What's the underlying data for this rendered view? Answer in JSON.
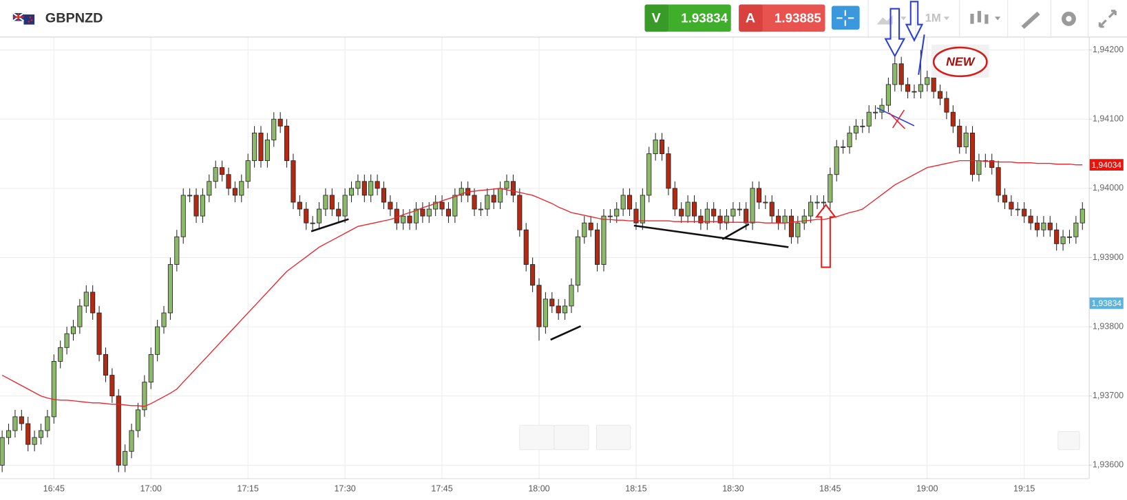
{
  "header": {
    "symbol": "GBPNZD",
    "sell_label": "V",
    "sell_price": "1.93834",
    "buy_label": "A",
    "buy_price": "1.93885",
    "timeframe": "1M"
  },
  "badge": "NEW",
  "chart_data": {
    "type": "candlestick",
    "categories": [
      null,
      null,
      null,
      null,
      null,
      null,
      null,
      null,
      "16:45",
      null,
      null,
      null,
      null,
      null,
      null,
      null,
      null,
      null,
      null,
      null,
      null,
      null,
      null,
      "17:00",
      null,
      null,
      null,
      null,
      null,
      null,
      null,
      null,
      null,
      null,
      null,
      null,
      null,
      null,
      "17:15",
      null,
      null,
      null,
      null,
      null,
      null,
      null,
      null,
      null,
      null,
      null,
      null,
      null,
      null,
      "17:30",
      null,
      null,
      null,
      null,
      null,
      null,
      null,
      null,
      null,
      null,
      null,
      null,
      null,
      null,
      "17:45",
      null,
      null,
      null,
      null,
      null,
      null,
      null,
      null,
      null,
      null,
      null,
      null,
      null,
      null,
      "18:00",
      null,
      null,
      null,
      null,
      null,
      null,
      null,
      null,
      null,
      null,
      null,
      null,
      null,
      null,
      "18:15",
      null,
      null,
      null,
      null,
      null,
      null,
      null,
      null,
      null,
      null,
      null,
      null,
      null,
      null,
      "18:30",
      null,
      null,
      null,
      null,
      null,
      null,
      null,
      null,
      null,
      null,
      null,
      null,
      null,
      null,
      "18:45",
      null,
      null,
      null,
      null,
      null,
      null,
      null,
      null,
      null,
      null,
      null,
      null,
      null,
      null,
      "19:00",
      null,
      null,
      null,
      null,
      null,
      null,
      null,
      null,
      null,
      null,
      null,
      null,
      null,
      null,
      "19:15",
      null,
      null,
      null,
      null,
      null,
      null,
      null,
      null,
      null
    ],
    "open": [
      1.936,
      1.9364,
      1.9365,
      1.9367,
      1.9366,
      1.9363,
      1.9364,
      1.9365,
      1.9367,
      1.9375,
      1.9377,
      1.9379,
      1.938,
      1.9383,
      1.9385,
      1.9382,
      1.9376,
      1.9373,
      1.937,
      1.936,
      1.9362,
      1.9365,
      1.9368,
      1.9372,
      1.9376,
      1.938,
      1.9382,
      1.9389,
      1.9393,
      1.9399,
      1.9399,
      1.9396,
      1.9399,
      1.9401,
      1.9403,
      1.9402,
      1.94,
      1.9399,
      1.9401,
      1.9404,
      1.9408,
      1.9404,
      1.9407,
      1.941,
      1.9409,
      1.9404,
      1.9398,
      1.9397,
      1.9395,
      1.9395,
      1.9397,
      1.9399,
      1.9397,
      1.9396,
      1.9399,
      1.94,
      1.9401,
      1.9399,
      1.9401,
      1.94,
      1.9398,
      1.9397,
      1.9395,
      1.9396,
      1.9395,
      1.9397,
      1.9396,
      1.9397,
      1.9398,
      1.9397,
      1.9396,
      1.9399,
      1.94,
      1.9399,
      1.9397,
      1.9397,
      1.9399,
      1.9398,
      1.94,
      1.9401,
      1.9399,
      1.9394,
      1.9389,
      1.9386,
      1.938,
      1.9384,
      1.9383,
      1.9382,
      1.9383,
      1.9386,
      1.9393,
      1.9395,
      1.9394,
      1.9389,
      1.9396,
      1.9396,
      1.9397,
      1.9399,
      1.9397,
      1.9395,
      1.9399,
      1.9405,
      1.9407,
      1.9405,
      1.94,
      1.9397,
      1.9396,
      1.9398,
      1.9396,
      1.9395,
      1.9397,
      1.9396,
      1.9395,
      1.9396,
      1.9397,
      1.9397,
      1.9395,
      1.94,
      1.9398,
      1.9398,
      1.9396,
      1.9395,
      1.9396,
      1.9393,
      1.9395,
      1.9396,
      1.9398,
      1.9398,
      1.9398,
      1.9402,
      1.9406,
      1.9406,
      1.9408,
      1.9409,
      1.9409,
      1.9411,
      1.9411,
      1.9412,
      1.9415,
      1.9418,
      1.9415,
      1.9414,
      1.9414,
      1.9415,
      1.9416,
      1.9414,
      1.9413,
      1.9411,
      1.9409,
      1.9406,
      1.9408,
      1.9402,
      1.9404,
      1.9404,
      1.9403,
      1.9399,
      1.9398,
      1.9397,
      1.9397,
      1.9396,
      1.9395,
      1.9394,
      1.9395,
      1.9394,
      1.9392,
      1.9393,
      1.9393,
      1.9395
    ],
    "high": [
      1.9365,
      1.9366,
      1.9368,
      1.9368,
      1.9367,
      1.9365,
      1.9366,
      1.9368,
      1.9376,
      1.9378,
      1.938,
      1.9381,
      1.9384,
      1.9386,
      1.9386,
      1.9383,
      1.9377,
      1.9374,
      1.9371,
      1.9363,
      1.9366,
      1.9369,
      1.9373,
      1.9377,
      1.9381,
      1.9383,
      1.939,
      1.9394,
      1.94,
      1.94,
      1.94,
      1.94,
      1.9402,
      1.9404,
      1.9404,
      1.9403,
      1.9401,
      1.9402,
      1.9405,
      1.9409,
      1.9409,
      1.9408,
      1.9411,
      1.9411,
      1.941,
      1.9405,
      1.9399,
      1.9398,
      1.9396,
      1.9398,
      1.94,
      1.94,
      1.9398,
      1.94,
      1.9401,
      1.9402,
      1.9402,
      1.9402,
      1.9402,
      1.9401,
      1.9399,
      1.9398,
      1.9397,
      1.9397,
      1.9398,
      1.9398,
      1.9398,
      1.9399,
      1.9399,
      1.9398,
      1.94,
      1.9401,
      1.9401,
      1.94,
      1.9398,
      1.94,
      1.94,
      1.9401,
      1.9402,
      1.9402,
      1.94,
      1.9395,
      1.939,
      1.9387,
      1.9385,
      1.9385,
      1.9384,
      1.9384,
      1.9387,
      1.9394,
      1.9396,
      1.9396,
      1.9395,
      1.9397,
      1.9397,
      1.9398,
      1.94,
      1.94,
      1.9398,
      1.94,
      1.9406,
      1.9408,
      1.9408,
      1.9406,
      1.9401,
      1.9398,
      1.9399,
      1.9399,
      1.9397,
      1.9398,
      1.9398,
      1.9397,
      1.9397,
      1.9398,
      1.9398,
      1.9398,
      1.9401,
      1.9401,
      1.9399,
      1.9399,
      1.9397,
      1.9397,
      1.9397,
      1.9396,
      1.9397,
      1.9399,
      1.9399,
      1.9399,
      1.9403,
      1.9407,
      1.9407,
      1.9409,
      1.941,
      1.941,
      1.9412,
      1.9412,
      1.9413,
      1.9416,
      1.9419,
      1.9419,
      1.9416,
      1.9415,
      1.942,
      1.9417,
      1.9417,
      1.9415,
      1.9414,
      1.9412,
      1.941,
      1.9409,
      1.9409,
      1.9405,
      1.9405,
      1.9405,
      1.9404,
      1.94,
      1.9399,
      1.9398,
      1.9398,
      1.9397,
      1.9396,
      1.9396,
      1.9396,
      1.9395,
      1.9394,
      1.9394,
      1.9396,
      1.9398
    ],
    "low": [
      1.9359,
      1.9363,
      1.9364,
      1.9365,
      1.9362,
      1.9362,
      1.9363,
      1.9364,
      1.9366,
      1.9374,
      1.9376,
      1.9378,
      1.9379,
      1.9382,
      1.9381,
      1.9375,
      1.9372,
      1.9369,
      1.9359,
      1.9359,
      1.9361,
      1.9364,
      1.9367,
      1.9371,
      1.9375,
      1.9379,
      1.9381,
      1.9388,
      1.9392,
      1.9398,
      1.9395,
      1.9395,
      1.9398,
      1.94,
      1.9401,
      1.9399,
      1.9398,
      1.9398,
      1.94,
      1.9403,
      1.9403,
      1.9403,
      1.9406,
      1.9408,
      1.9403,
      1.9397,
      1.9396,
      1.9394,
      1.9394,
      1.9394,
      1.9396,
      1.9396,
      1.9395,
      1.9395,
      1.9398,
      1.9399,
      1.9398,
      1.9398,
      1.9399,
      1.9397,
      1.9396,
      1.9394,
      1.9394,
      1.9394,
      1.9394,
      1.9395,
      1.9395,
      1.9396,
      1.9396,
      1.9395,
      1.9395,
      1.9398,
      1.9398,
      1.9396,
      1.9396,
      1.9396,
      1.9397,
      1.9397,
      1.9399,
      1.9398,
      1.9393,
      1.9388,
      1.9385,
      1.9378,
      1.9379,
      1.9382,
      1.9381,
      1.9381,
      1.9382,
      1.9385,
      1.9392,
      1.9393,
      1.9388,
      1.9388,
      1.9395,
      1.9395,
      1.9396,
      1.9396,
      1.9394,
      1.9394,
      1.9398,
      1.9404,
      1.9404,
      1.9399,
      1.9396,
      1.9395,
      1.9395,
      1.9395,
      1.9394,
      1.9394,
      1.9395,
      1.9394,
      1.9394,
      1.9395,
      1.9396,
      1.9394,
      1.9394,
      1.9397,
      1.9397,
      1.9395,
      1.9394,
      1.9394,
      1.9392,
      1.9392,
      1.9394,
      1.9395,
      1.9397,
      1.9397,
      1.9397,
      1.9401,
      1.9405,
      1.9405,
      1.9407,
      1.9408,
      1.9408,
      1.941,
      1.941,
      1.9411,
      1.9414,
      1.9414,
      1.9413,
      1.9413,
      1.9413,
      1.9414,
      1.9413,
      1.9412,
      1.941,
      1.9408,
      1.9405,
      1.9405,
      1.9401,
      1.9401,
      1.9403,
      1.9402,
      1.9398,
      1.9397,
      1.9396,
      1.9396,
      1.9395,
      1.9394,
      1.9393,
      1.9393,
      1.9393,
      1.9391,
      1.9391,
      1.9392,
      1.9392,
      1.9394
    ],
    "close": [
      1.9364,
      1.9365,
      1.9367,
      1.9366,
      1.9363,
      1.9364,
      1.9365,
      1.9367,
      1.9375,
      1.9377,
      1.9379,
      1.938,
      1.9383,
      1.9385,
      1.9382,
      1.9376,
      1.9373,
      1.937,
      1.936,
      1.9362,
      1.9365,
      1.9368,
      1.9372,
      1.9376,
      1.938,
      1.9382,
      1.9389,
      1.9393,
      1.9399,
      1.9399,
      1.9396,
      1.9399,
      1.9401,
      1.9403,
      1.9402,
      1.94,
      1.9399,
      1.9401,
      1.9404,
      1.9408,
      1.9404,
      1.9407,
      1.941,
      1.9409,
      1.9404,
      1.9398,
      1.9397,
      1.9395,
      1.9395,
      1.9397,
      1.9399,
      1.9397,
      1.9396,
      1.9399,
      1.94,
      1.9401,
      1.9399,
      1.9401,
      1.94,
      1.9398,
      1.9397,
      1.9395,
      1.9396,
      1.9395,
      1.9397,
      1.9396,
      1.9397,
      1.9398,
      1.9397,
      1.9396,
      1.9399,
      1.94,
      1.9399,
      1.9397,
      1.9397,
      1.9399,
      1.9398,
      1.94,
      1.9401,
      1.9399,
      1.9394,
      1.9389,
      1.9386,
      1.938,
      1.9384,
      1.9383,
      1.9382,
      1.9383,
      1.9386,
      1.9393,
      1.9395,
      1.9394,
      1.9389,
      1.9396,
      1.9396,
      1.9397,
      1.9399,
      1.9397,
      1.9395,
      1.9399,
      1.9405,
      1.9407,
      1.9405,
      1.94,
      1.9397,
      1.9396,
      1.9398,
      1.9396,
      1.9395,
      1.9397,
      1.9396,
      1.9395,
      1.9396,
      1.9397,
      1.9397,
      1.9395,
      1.94,
      1.9398,
      1.9398,
      1.9396,
      1.9395,
      1.9396,
      1.9393,
      1.9395,
      1.9396,
      1.9398,
      1.9398,
      1.9398,
      1.9402,
      1.9406,
      1.9406,
      1.9408,
      1.9409,
      1.9409,
      1.9411,
      1.9411,
      1.9412,
      1.9415,
      1.9418,
      1.9415,
      1.9414,
      1.9414,
      1.9415,
      1.9416,
      1.9414,
      1.9413,
      1.9411,
      1.9409,
      1.9406,
      1.9408,
      1.9402,
      1.9404,
      1.9404,
      1.9403,
      1.9399,
      1.9398,
      1.9397,
      1.9397,
      1.9396,
      1.9395,
      1.9394,
      1.9395,
      1.9394,
      1.9392,
      1.9393,
      1.9393,
      1.9395,
      1.9397
    ],
    "ma": {
      "color": "#e8242b",
      "values": [
        1.9373,
        1.93725,
        1.9372,
        1.93715,
        1.9371,
        1.93705,
        1.937,
        1.93697,
        1.93695,
        1.93694,
        1.93694,
        1.93693,
        1.93692,
        1.93691,
        1.9369,
        1.9369,
        1.93689,
        1.93688,
        1.93688,
        1.93687,
        1.93686,
        1.93686,
        1.93685,
        1.93689,
        1.93694,
        1.93699,
        1.93704,
        1.9371,
        1.9372,
        1.9373,
        1.9374,
        1.9375,
        1.9376,
        1.9377,
        1.9378,
        1.9379,
        1.938,
        1.9381,
        1.9382,
        1.9383,
        1.9384,
        1.9385,
        1.9386,
        1.9387,
        1.9388,
        1.93887,
        1.93894,
        1.93901,
        1.93908,
        1.93915,
        1.9392,
        1.93925,
        1.9393,
        1.93935,
        1.9394,
        1.93945,
        1.93947,
        1.93949,
        1.93951,
        1.93953,
        1.93955,
        1.93958,
        1.93962,
        1.93965,
        1.93968,
        1.93972,
        1.93975,
        1.93978,
        1.93982,
        1.93985,
        1.93988,
        1.93992,
        1.93995,
        1.93996,
        1.93997,
        1.93998,
        1.93999,
        1.94,
        1.93998,
        1.93996,
        1.93994,
        1.93992,
        1.9399,
        1.93986,
        1.93982,
        1.93978,
        1.93973,
        1.93969,
        1.93965,
        1.93963,
        1.93961,
        1.93959,
        1.93957,
        1.93955,
        1.93955,
        1.93954,
        1.93954,
        1.93953,
        1.93953,
        1.93953,
        1.93953,
        1.93953,
        1.93953,
        1.93953,
        1.93952,
        1.93952,
        1.93952,
        1.93952,
        1.93952,
        1.93952,
        1.93952,
        1.93952,
        1.93951,
        1.93951,
        1.93951,
        1.93951,
        1.93951,
        1.93951,
        1.9395,
        1.9395,
        1.9395,
        1.9395,
        1.93951,
        1.93952,
        1.93953,
        1.93954,
        1.93955,
        1.93955,
        1.93957,
        1.93959,
        1.93962,
        1.93965,
        1.93967,
        1.9397,
        1.93977,
        1.93984,
        1.93991,
        1.93998,
        1.94005,
        1.9401,
        1.94015,
        1.9402,
        1.94025,
        1.9403,
        1.94032,
        1.94034,
        1.94036,
        1.94038,
        1.9404,
        1.9404,
        1.9404,
        1.9404,
        1.94039,
        1.94039,
        1.94038,
        1.94038,
        1.94038,
        1.94037,
        1.94037,
        1.94037,
        1.94036,
        1.94036,
        1.94036,
        1.94035,
        1.94035,
        1.94035,
        1.94034,
        1.94034
      ]
    },
    "up_color": "#8dba6a",
    "down_color": "#b02a14",
    "ylim": [
      1.93581,
      1.94218
    ],
    "yticks": [
      {
        "value": 1.936,
        "label": "1,93600"
      },
      {
        "value": 1.937,
        "label": "1,93700"
      },
      {
        "value": 1.938,
        "label": "1,93800"
      },
      {
        "value": 1.939,
        "label": "1,93900"
      },
      {
        "value": 1.94,
        "label": "1,94000"
      },
      {
        "value": 1.941,
        "label": "1,94100"
      },
      {
        "value": 1.942,
        "label": "1,94200"
      }
    ],
    "grid": true,
    "price_tags": [
      {
        "value": 1.94034,
        "label": "1,94034",
        "color": "#e8140c"
      },
      {
        "value": 1.93834,
        "label": "1,93834",
        "color": "#5cb4de"
      }
    ]
  }
}
